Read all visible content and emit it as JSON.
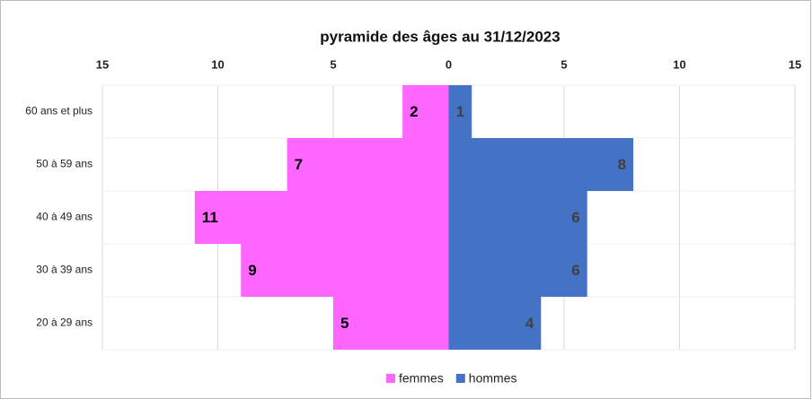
{
  "chart_data": {
    "type": "pyramid",
    "title": "pyramide des âges au 31/12/2023",
    "categories": [
      "60 ans et plus",
      "50 à 59 ans",
      "40 à 49 ans",
      "30 à 39 ans",
      "20 à 29 ans"
    ],
    "series": [
      {
        "name": "femmes",
        "color": "#ff66ff",
        "values": [
          -2,
          -7,
          -11,
          -9,
          -5
        ],
        "value_labels": [
          "2",
          "7",
          "11",
          "9",
          "5"
        ]
      },
      {
        "name": "hommes",
        "color": "#4472c4",
        "values": [
          1,
          8,
          6,
          6,
          4
        ]
      }
    ],
    "xlim": [
      -15,
      15
    ],
    "xticks": [
      {
        "value": -15,
        "label": "15"
      },
      {
        "value": -10,
        "label": "10"
      },
      {
        "value": -5,
        "label": "5"
      },
      0,
      5,
      10,
      15
    ],
    "grid": true,
    "legend": "bottom"
  }
}
